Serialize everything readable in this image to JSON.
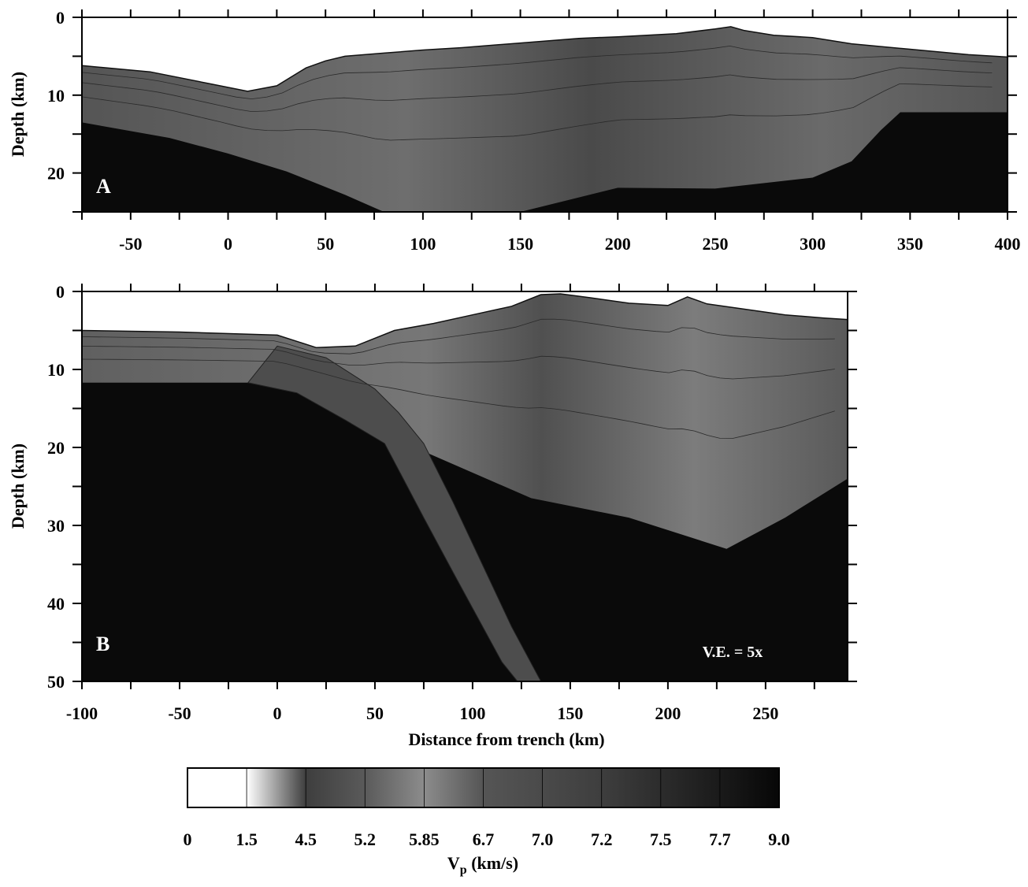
{
  "chart_data": [
    {
      "type": "heatmap",
      "panel": "A",
      "ylabel": "Depth (km)",
      "xlabel": "",
      "xlim": [
        -75,
        400
      ],
      "ylim": [
        0,
        25
      ],
      "xticks": [
        -50,
        0,
        50,
        100,
        150,
        200,
        250,
        300,
        350,
        400
      ],
      "yticks": [
        0,
        10,
        20
      ],
      "surface": {
        "x": [
          -75,
          -40,
          -10,
          10,
          25,
          40,
          50,
          60,
          80,
          100,
          120,
          150,
          180,
          200,
          230,
          250,
          258,
          265,
          280,
          300,
          320,
          350,
          380,
          400
        ],
        "depth": [
          6.2,
          7.0,
          8.5,
          9.5,
          8.8,
          6.5,
          5.6,
          5.0,
          4.6,
          4.2,
          3.9,
          3.3,
          2.7,
          2.5,
          2.1,
          1.5,
          1.2,
          1.7,
          2.3,
          2.6,
          3.4,
          4.1,
          4.8,
          5.1
        ]
      },
      "moho": {
        "x": [
          -75,
          -30,
          0,
          30,
          60,
          80,
          90,
          100,
          120,
          150,
          200,
          250,
          300,
          320,
          335,
          345,
          400
        ],
        "depth": [
          13.5,
          15.5,
          17.5,
          19.8,
          22.8,
          25,
          25,
          25,
          25,
          25,
          21.9,
          22.0,
          20.6,
          18.5,
          14.5,
          12.2,
          12.2
        ]
      }
    },
    {
      "type": "heatmap",
      "panel": "B",
      "ylabel": "Depth (km)",
      "xlabel": "Distance from trench (km)",
      "xlim": [
        -100,
        292
      ],
      "ylim": [
        0,
        50
      ],
      "xticks": [
        -100,
        -50,
        0,
        50,
        100,
        150,
        200,
        250
      ],
      "yticks": [
        0,
        10,
        20,
        30,
        40,
        50
      ],
      "annotation": "V.E. = 5x",
      "surface": {
        "x": [
          -100,
          -50,
          0,
          20,
          40,
          60,
          80,
          100,
          120,
          135,
          145,
          160,
          180,
          200,
          210,
          220,
          240,
          260,
          280,
          292
        ],
        "depth": [
          5.0,
          5.2,
          5.6,
          7.2,
          7.0,
          5.0,
          4.1,
          3.0,
          1.9,
          0.4,
          0.3,
          0.8,
          1.5,
          1.8,
          0.7,
          1.6,
          2.3,
          3.0,
          3.4,
          3.6
        ]
      },
      "moho": {
        "x": [
          -100,
          0,
          20,
          40,
          60,
          75,
          130,
          180,
          230,
          260,
          292
        ],
        "depth": [
          11.7,
          11.7,
          12.8,
          15.5,
          18.5,
          20.5,
          26.5,
          29.0,
          33.0,
          29.0,
          24.0
        ]
      },
      "slab_top": {
        "x": [
          0,
          25,
          50,
          62,
          75,
          90,
          105,
          120,
          135
        ],
        "depth": [
          7.0,
          8.5,
          12.5,
          15.5,
          19.5,
          27.0,
          35.0,
          43.0,
          50.0
        ]
      },
      "slab_bottom": {
        "x": [
          -15,
          10,
          35,
          55,
          75,
          90,
          103,
          115,
          123
        ],
        "depth": [
          11.7,
          13.0,
          16.5,
          19.5,
          29.0,
          36.0,
          42.0,
          47.5,
          50.0
        ]
      }
    }
  ],
  "colorbar": {
    "ticks": [
      "0",
      "1.5",
      "4.5",
      "5.2",
      "5.85",
      "6.7",
      "7.0",
      "7.2",
      "7.5",
      "7.7",
      "9.0"
    ],
    "colors": [
      "#ffffff",
      "#ffffff",
      "#3e3e3e",
      "#5a5a5a",
      "#8c8c8c",
      "#555555",
      "#4a4a4a",
      "#3e3e3e",
      "#2c2c2c",
      "#1a1a1a",
      "#070707"
    ],
    "label_main": "V",
    "label_sub": "p",
    "label_unit": " (km/s)"
  }
}
